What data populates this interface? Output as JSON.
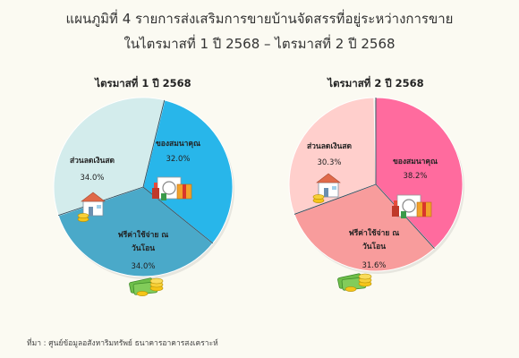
{
  "title_line1": "แผนภูมิที่ 4 รายการส่งเสริมการขายบ้านจัดสรรที่อยู่ระหว่างการขาย",
  "title_line2": "ในไตรมาสที่ 1 ปี 2568 – ไตรมาสที่ 2 ปี 2568",
  "source": "ที่มา : ศูนย์ข้อมูลอสังหาริมทรัพย์ ธนาคารอาคารสงเคราะห์",
  "chart_data": [
    {
      "type": "pie",
      "title": "ไตรมาสที่ 1 ปี 2568",
      "slices": [
        {
          "label": "ของสมนาคุณ",
          "value": 32.0,
          "value_label": "32.0%",
          "color": "#28b6ea",
          "icon": "gift-box-icon"
        },
        {
          "label": "ฟรีค่าใช้จ่าย ณ วันโอน",
          "value": 34.0,
          "value_label": "34.0%",
          "color": "#4aa9c9",
          "icon": "money-stack-icon"
        },
        {
          "label": "ส่วนลดเงินสด",
          "value": 34.0,
          "value_label": "34.0%",
          "color": "#d3ecec",
          "icon": "house-discount-icon"
        }
      ]
    },
    {
      "type": "pie",
      "title": "ไตรมาสที่ 2 ปี 2568",
      "slices": [
        {
          "label": "ของสมนาคุณ",
          "value": 38.2,
          "value_label": "38.2%",
          "color": "#ff6b9e",
          "icon": "gift-box-icon"
        },
        {
          "label": "ฟรีค่าใช้จ่าย ณ วันโอน",
          "value": 31.6,
          "value_label": "31.6%",
          "color": "#f89c9c",
          "icon": "money-stack-icon"
        },
        {
          "label": "ส่วนลดเงินสด",
          "value": 30.3,
          "value_label": "30.3%",
          "color": "#ffcfcc",
          "icon": "house-discount-icon"
        }
      ]
    }
  ]
}
